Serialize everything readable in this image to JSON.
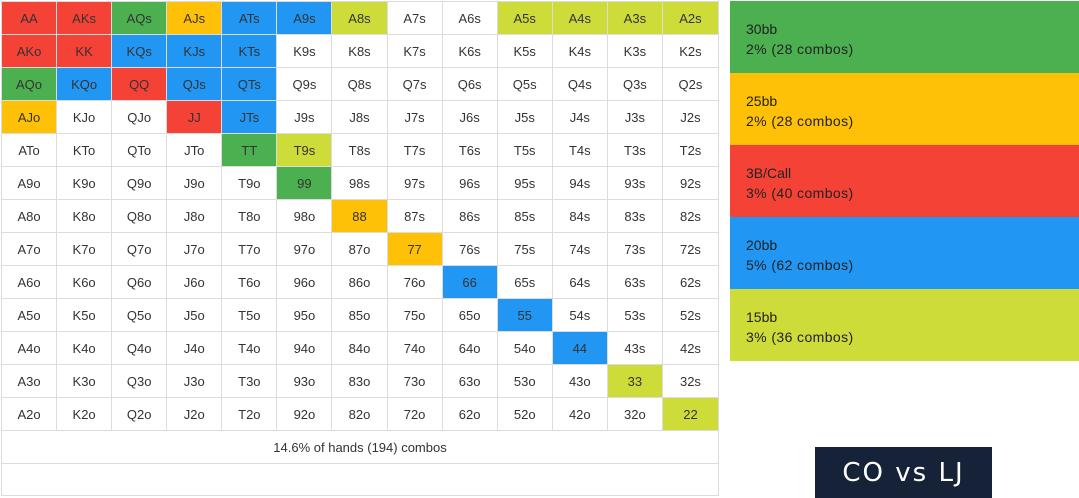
{
  "colors": {
    "30bb": "#4caf50",
    "25bb": "#ffc107",
    "3b": "#f44336",
    "20bb": "#2196f3",
    "15bb": "#cddc39"
  },
  "grid": {
    "rows": [
      [
        [
          "AA",
          "3b"
        ],
        [
          "AKs",
          "3b"
        ],
        [
          "AQs",
          "30"
        ],
        [
          "AJs",
          "25"
        ],
        [
          "ATs",
          "20"
        ],
        [
          "A9s",
          "20"
        ],
        [
          "A8s",
          "15"
        ],
        [
          "A7s",
          ""
        ],
        [
          "A6s",
          ""
        ],
        [
          "A5s",
          "15"
        ],
        [
          "A4s",
          "15"
        ],
        [
          "A3s",
          "15"
        ],
        [
          "A2s",
          "15"
        ]
      ],
      [
        [
          "AKo",
          "3b"
        ],
        [
          "KK",
          "3b"
        ],
        [
          "KQs",
          "20"
        ],
        [
          "KJs",
          "20"
        ],
        [
          "KTs",
          "20"
        ],
        [
          "K9s",
          ""
        ],
        [
          "K8s",
          ""
        ],
        [
          "K7s",
          ""
        ],
        [
          "K6s",
          ""
        ],
        [
          "K5s",
          ""
        ],
        [
          "K4s",
          ""
        ],
        [
          "K3s",
          ""
        ],
        [
          "K2s",
          ""
        ]
      ],
      [
        [
          "AQo",
          "30"
        ],
        [
          "KQo",
          "20"
        ],
        [
          "QQ",
          "3b"
        ],
        [
          "QJs",
          "20"
        ],
        [
          "QTs",
          "20"
        ],
        [
          "Q9s",
          ""
        ],
        [
          "Q8s",
          ""
        ],
        [
          "Q7s",
          ""
        ],
        [
          "Q6s",
          ""
        ],
        [
          "Q5s",
          ""
        ],
        [
          "Q4s",
          ""
        ],
        [
          "Q3s",
          ""
        ],
        [
          "Q2s",
          ""
        ]
      ],
      [
        [
          "AJo",
          "25"
        ],
        [
          "KJo",
          ""
        ],
        [
          "QJo",
          ""
        ],
        [
          "JJ",
          "3b"
        ],
        [
          "JTs",
          "20"
        ],
        [
          "J9s",
          ""
        ],
        [
          "J8s",
          ""
        ],
        [
          "J7s",
          ""
        ],
        [
          "J6s",
          ""
        ],
        [
          "J5s",
          ""
        ],
        [
          "J4s",
          ""
        ],
        [
          "J3s",
          ""
        ],
        [
          "J2s",
          ""
        ]
      ],
      [
        [
          "ATo",
          ""
        ],
        [
          "KTo",
          ""
        ],
        [
          "QTo",
          ""
        ],
        [
          "JTo",
          ""
        ],
        [
          "TT",
          "30"
        ],
        [
          "T9s",
          "15"
        ],
        [
          "T8s",
          ""
        ],
        [
          "T7s",
          ""
        ],
        [
          "T6s",
          ""
        ],
        [
          "T5s",
          ""
        ],
        [
          "T4s",
          ""
        ],
        [
          "T3s",
          ""
        ],
        [
          "T2s",
          ""
        ]
      ],
      [
        [
          "A9o",
          ""
        ],
        [
          "K9o",
          ""
        ],
        [
          "Q9o",
          ""
        ],
        [
          "J9o",
          ""
        ],
        [
          "T9o",
          ""
        ],
        [
          "99",
          "30"
        ],
        [
          "98s",
          ""
        ],
        [
          "97s",
          ""
        ],
        [
          "96s",
          ""
        ],
        [
          "95s",
          ""
        ],
        [
          "94s",
          ""
        ],
        [
          "93s",
          ""
        ],
        [
          "92s",
          ""
        ]
      ],
      [
        [
          "A8o",
          ""
        ],
        [
          "K8o",
          ""
        ],
        [
          "Q8o",
          ""
        ],
        [
          "J8o",
          ""
        ],
        [
          "T8o",
          ""
        ],
        [
          "98o",
          ""
        ],
        [
          "88",
          "25"
        ],
        [
          "87s",
          ""
        ],
        [
          "86s",
          ""
        ],
        [
          "85s",
          ""
        ],
        [
          "84s",
          ""
        ],
        [
          "83s",
          ""
        ],
        [
          "82s",
          ""
        ]
      ],
      [
        [
          "A7o",
          ""
        ],
        [
          "K7o",
          ""
        ],
        [
          "Q7o",
          ""
        ],
        [
          "J7o",
          ""
        ],
        [
          "T7o",
          ""
        ],
        [
          "97o",
          ""
        ],
        [
          "87o",
          ""
        ],
        [
          "77",
          "25"
        ],
        [
          "76s",
          ""
        ],
        [
          "75s",
          ""
        ],
        [
          "74s",
          ""
        ],
        [
          "73s",
          ""
        ],
        [
          "72s",
          ""
        ]
      ],
      [
        [
          "A6o",
          ""
        ],
        [
          "K6o",
          ""
        ],
        [
          "Q6o",
          ""
        ],
        [
          "J6o",
          ""
        ],
        [
          "T6o",
          ""
        ],
        [
          "96o",
          ""
        ],
        [
          "86o",
          ""
        ],
        [
          "76o",
          ""
        ],
        [
          "66",
          "20"
        ],
        [
          "65s",
          ""
        ],
        [
          "64s",
          ""
        ],
        [
          "63s",
          ""
        ],
        [
          "62s",
          ""
        ]
      ],
      [
        [
          "A5o",
          ""
        ],
        [
          "K5o",
          ""
        ],
        [
          "Q5o",
          ""
        ],
        [
          "J5o",
          ""
        ],
        [
          "T5o",
          ""
        ],
        [
          "95o",
          ""
        ],
        [
          "85o",
          ""
        ],
        [
          "75o",
          ""
        ],
        [
          "65o",
          ""
        ],
        [
          "55",
          "20"
        ],
        [
          "54s",
          ""
        ],
        [
          "53s",
          ""
        ],
        [
          "52s",
          ""
        ]
      ],
      [
        [
          "A4o",
          ""
        ],
        [
          "K4o",
          ""
        ],
        [
          "Q4o",
          ""
        ],
        [
          "J4o",
          ""
        ],
        [
          "T4o",
          ""
        ],
        [
          "94o",
          ""
        ],
        [
          "84o",
          ""
        ],
        [
          "74o",
          ""
        ],
        [
          "64o",
          ""
        ],
        [
          "54o",
          ""
        ],
        [
          "44",
          "20"
        ],
        [
          "43s",
          ""
        ],
        [
          "42s",
          ""
        ]
      ],
      [
        [
          "A3o",
          ""
        ],
        [
          "K3o",
          ""
        ],
        [
          "Q3o",
          ""
        ],
        [
          "J3o",
          ""
        ],
        [
          "T3o",
          ""
        ],
        [
          "93o",
          ""
        ],
        [
          "83o",
          ""
        ],
        [
          "73o",
          ""
        ],
        [
          "63o",
          ""
        ],
        [
          "53o",
          ""
        ],
        [
          "43o",
          ""
        ],
        [
          "33",
          "15"
        ],
        [
          "32s",
          ""
        ]
      ],
      [
        [
          "A2o",
          ""
        ],
        [
          "K2o",
          ""
        ],
        [
          "Q2o",
          ""
        ],
        [
          "J2o",
          ""
        ],
        [
          "T2o",
          ""
        ],
        [
          "92o",
          ""
        ],
        [
          "82o",
          ""
        ],
        [
          "72o",
          ""
        ],
        [
          "62o",
          ""
        ],
        [
          "52o",
          ""
        ],
        [
          "42o",
          ""
        ],
        [
          "32o",
          ""
        ],
        [
          "22",
          "15"
        ]
      ]
    ],
    "summary": "14.6% of hands (194) combos"
  },
  "legend": [
    {
      "key": "30",
      "title": "30bb",
      "detail": "2% (28 combos)"
    },
    {
      "key": "25",
      "title": "25bb",
      "detail": "2% (28 combos)"
    },
    {
      "key": "3b",
      "title": "3B/Call",
      "detail": "3% (40 combos)"
    },
    {
      "key": "20",
      "title": "20bb",
      "detail": "5% (62 combos)"
    },
    {
      "key": "15",
      "title": "15bb",
      "detail": "3% (36 combos)"
    }
  ],
  "matchup": "CO vs LJ"
}
